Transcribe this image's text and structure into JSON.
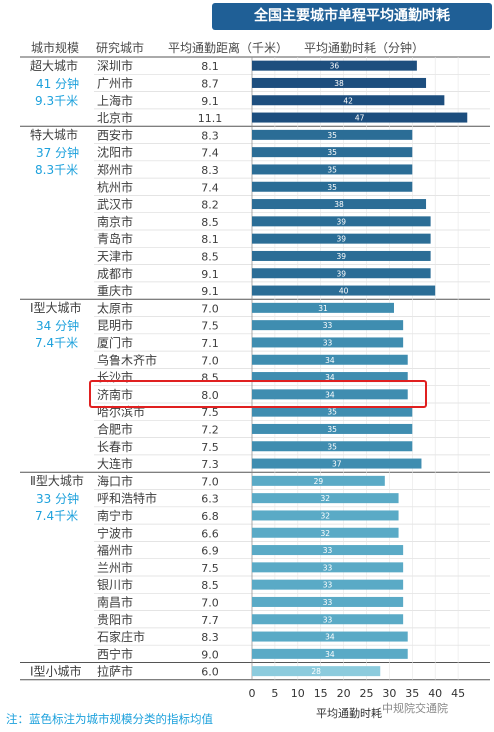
{
  "title": "全国主要城市单程平均通勤时耗",
  "headers": {
    "scale": "城市规模",
    "city": "研究城市",
    "distance": "平均通勤距离（千米）",
    "time": "平均通勤时耗（分钟）"
  },
  "note": "注：蓝色标注为城市规模分类的指标均值",
  "watermark": "中规院交通院",
  "chart_data": {
    "type": "bar",
    "orientation": "horizontal",
    "title": "全国主要城市单程平均通勤时耗",
    "xlabel": "平均通勤时耗",
    "xlim": [
      0,
      47
    ],
    "xticks": [
      0,
      5,
      10,
      15,
      20,
      25,
      30,
      35,
      40,
      45
    ],
    "highlighted_city": "济南市",
    "groups": [
      {
        "name": "超大城市",
        "mean_time": "41 分钟",
        "mean_distance": "9.3千米",
        "color": "#1d4e7e",
        "cities": [
          {
            "name": "深圳市",
            "distance": "8.1",
            "time": 36
          },
          {
            "name": "广州市",
            "distance": "8.7",
            "time": 38
          },
          {
            "name": "上海市",
            "distance": "9.1",
            "time": 42
          },
          {
            "name": "北京市",
            "distance": "11.1",
            "time": 47
          }
        ]
      },
      {
        "name": "特大城市",
        "mean_time": "37 分钟",
        "mean_distance": "8.3千米",
        "color": "#2b6d96",
        "cities": [
          {
            "name": "西安市",
            "distance": "8.3",
            "time": 35
          },
          {
            "name": "沈阳市",
            "distance": "7.4",
            "time": 35
          },
          {
            "name": "郑州市",
            "distance": "8.3",
            "time": 35
          },
          {
            "name": "杭州市",
            "distance": "7.4",
            "time": 35
          },
          {
            "name": "武汉市",
            "distance": "8.2",
            "time": 38
          },
          {
            "name": "南京市",
            "distance": "8.5",
            "time": 39
          },
          {
            "name": "青岛市",
            "distance": "8.1",
            "time": 39
          },
          {
            "name": "天津市",
            "distance": "8.5",
            "time": 39
          },
          {
            "name": "成都市",
            "distance": "9.1",
            "time": 39
          },
          {
            "name": "重庆市",
            "distance": "9.1",
            "time": 40
          }
        ]
      },
      {
        "name": "Ⅰ型大城市",
        "mean_time": "34 分钟",
        "mean_distance": "7.4千米",
        "color": "#3f8db0",
        "cities": [
          {
            "name": "太原市",
            "distance": "7.0",
            "time": 31
          },
          {
            "name": "昆明市",
            "distance": "7.5",
            "time": 33
          },
          {
            "name": "厦门市",
            "distance": "7.1",
            "time": 33
          },
          {
            "name": "乌鲁木齐市",
            "distance": "7.0",
            "time": 34
          },
          {
            "name": "长沙市",
            "distance": "8.5",
            "time": 34
          },
          {
            "name": "济南市",
            "distance": "8.0",
            "time": 34
          },
          {
            "name": "哈尔滨市",
            "distance": "7.5",
            "time": 35
          },
          {
            "name": "合肥市",
            "distance": "7.2",
            "time": 35
          },
          {
            "name": "长春市",
            "distance": "7.5",
            "time": 35
          },
          {
            "name": "大连市",
            "distance": "7.3",
            "time": 37
          }
        ]
      },
      {
        "name": "Ⅱ型大城市",
        "mean_time": "33 分钟",
        "mean_distance": "7.4千米",
        "color": "#5aaac6",
        "cities": [
          {
            "name": "海口市",
            "distance": "7.0",
            "time": 29
          },
          {
            "name": "呼和浩特市",
            "distance": "6.3",
            "time": 32
          },
          {
            "name": "南宁市",
            "distance": "6.8",
            "time": 32
          },
          {
            "name": "宁波市",
            "distance": "6.6",
            "time": 32
          },
          {
            "name": "福州市",
            "distance": "6.9",
            "time": 33
          },
          {
            "name": "兰州市",
            "distance": "7.5",
            "time": 33
          },
          {
            "name": "银川市",
            "distance": "8.5",
            "time": 33
          },
          {
            "name": "南昌市",
            "distance": "7.0",
            "time": 33
          },
          {
            "name": "贵阳市",
            "distance": "7.7",
            "time": 33
          },
          {
            "name": "石家庄市",
            "distance": "8.3",
            "time": 34
          },
          {
            "name": "西宁市",
            "distance": "9.0",
            "time": 34
          }
        ]
      },
      {
        "name": "Ⅰ型小城市",
        "mean_time": "",
        "mean_distance": "",
        "color": "#8ccbdd",
        "cities": [
          {
            "name": "拉萨市",
            "distance": "6.0",
            "time": 28
          }
        ]
      }
    ]
  }
}
